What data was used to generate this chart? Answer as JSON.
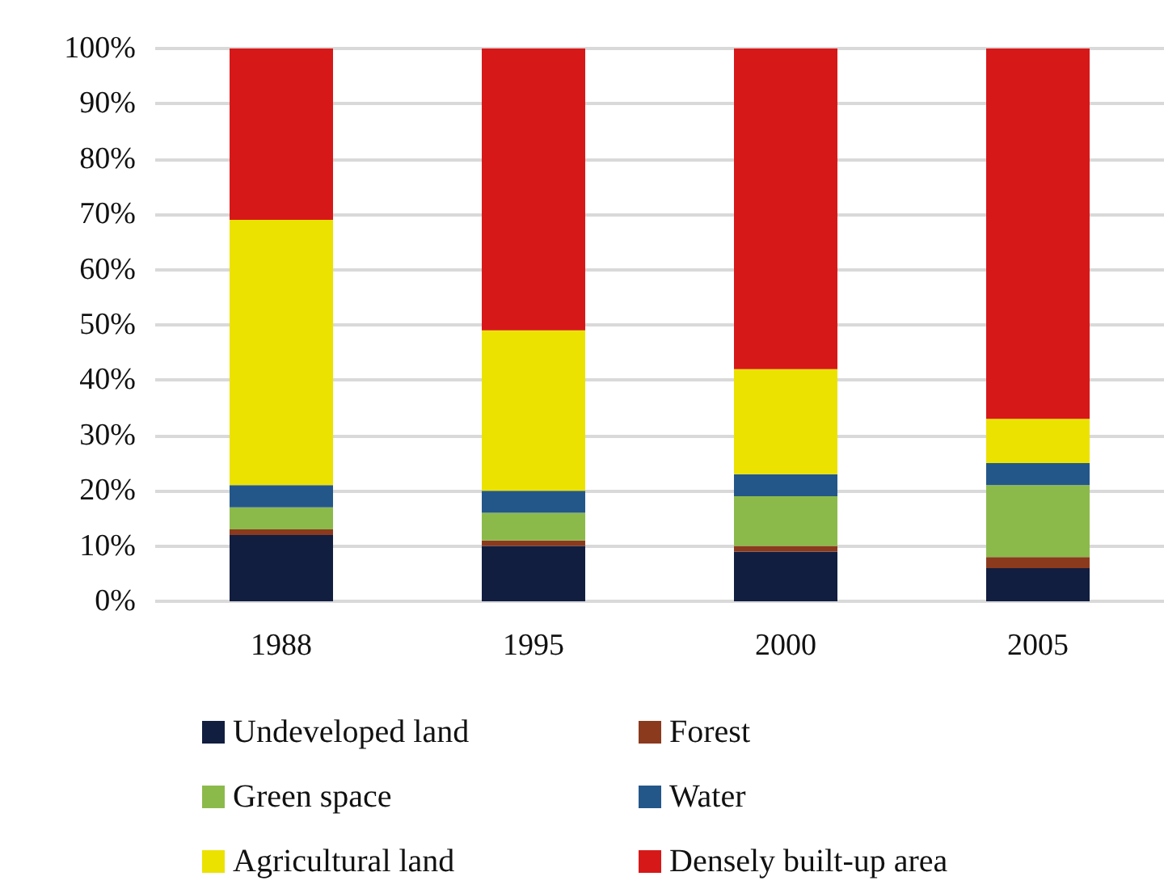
{
  "chart_data": {
    "type": "bar",
    "stacked": true,
    "categories": [
      "1988",
      "1995",
      "2000",
      "2005"
    ],
    "series": [
      {
        "name": "Undeveloped land",
        "color": "#111e40",
        "values": [
          12,
          10,
          9,
          6
        ]
      },
      {
        "name": "Forest",
        "color": "#8b3a1e",
        "values": [
          1,
          1,
          1,
          2
        ]
      },
      {
        "name": "Green space",
        "color": "#8bba4b",
        "values": [
          4,
          5,
          9,
          13
        ]
      },
      {
        "name": "Water",
        "color": "#245789",
        "values": [
          4,
          4,
          4,
          4
        ]
      },
      {
        "name": "Agricultural land",
        "color": "#ebe200",
        "values": [
          48,
          29,
          19,
          8
        ]
      },
      {
        "name": "Densely built-up area",
        "color": "#d71819",
        "values": [
          31,
          51,
          58,
          67
        ]
      }
    ],
    "ylim": [
      0,
      100
    ],
    "yticks": [
      {
        "value": 0,
        "label": "0%"
      },
      {
        "value": 10,
        "label": "10%"
      },
      {
        "value": 20,
        "label": "20%"
      },
      {
        "value": 30,
        "label": "30%"
      },
      {
        "value": 40,
        "label": "40%"
      },
      {
        "value": 50,
        "label": "50%"
      },
      {
        "value": 60,
        "label": "60%"
      },
      {
        "value": 70,
        "label": "70%"
      },
      {
        "value": 80,
        "label": "80%"
      },
      {
        "value": 90,
        "label": "90%"
      },
      {
        "value": 100,
        "label": "100%"
      }
    ],
    "grid": "y",
    "legend": "bottom"
  }
}
